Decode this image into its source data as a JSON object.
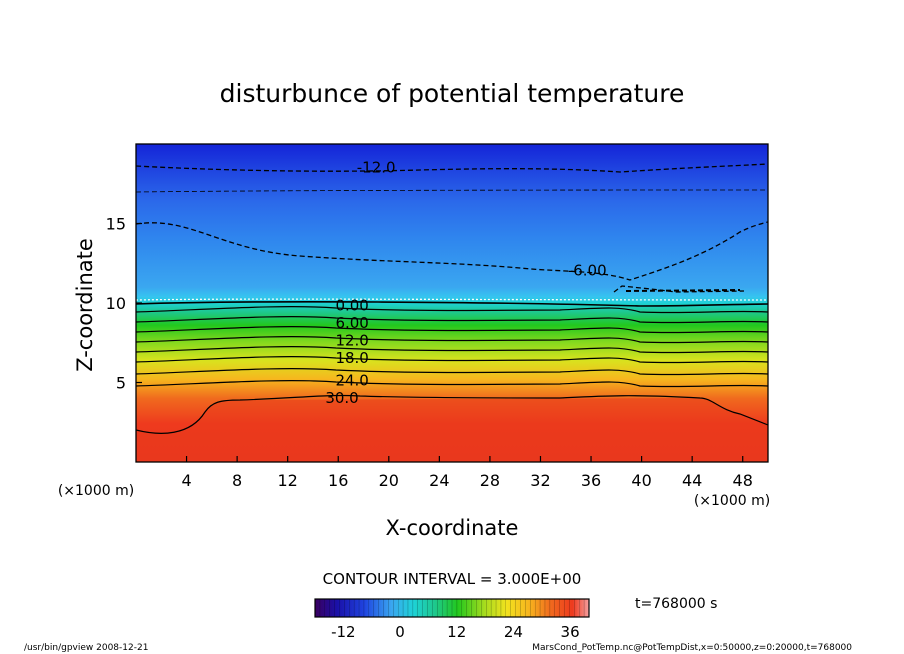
{
  "chart_data": {
    "type": "heatmap",
    "title": "disturbunce of potential temperature",
    "xlabel": "X-coordinate",
    "ylabel": "Z-coordinate",
    "x_unit": "(×1000 m)",
    "y_unit": "(×1000 m)",
    "xlim": [
      0,
      50
    ],
    "ylim": [
      0,
      20
    ],
    "x_ticks": [
      4,
      8,
      12,
      16,
      20,
      24,
      28,
      32,
      36,
      40,
      44,
      48
    ],
    "y_ticks": [
      5,
      10,
      15
    ],
    "grid": false,
    "contour_interval_label": "CONTOUR INTERVAL = 3.000E+00",
    "time_label": "t=768000 s",
    "colorbar": {
      "min": -18,
      "max": 40,
      "ticks": [
        -12,
        0,
        12,
        24,
        36
      ]
    },
    "contour_labels": [
      {
        "text": "-12.0",
        "x": 19,
        "z": 18.6
      },
      {
        "text": "-6.00",
        "x": 35.7,
        "z": 12.1
      },
      {
        "text": "0.00",
        "x": 17.1,
        "z": 9.9
      },
      {
        "text": "6.00",
        "x": 17.1,
        "z": 8.8
      },
      {
        "text": "12.0",
        "x": 17.1,
        "z": 7.7
      },
      {
        "text": "18.0",
        "x": 17.1,
        "z": 6.6
      },
      {
        "text": "24.0",
        "x": 17.1,
        "z": 5.2
      },
      {
        "text": "30.0",
        "x": 16.3,
        "z": 4.1
      }
    ],
    "footer_left": "/usr/bin/gpview   2008-12-21",
    "footer_right": "MarsCond_PotTemp.nc@PotTempDist,x=0:50000,z=0:20000,t=768000"
  }
}
